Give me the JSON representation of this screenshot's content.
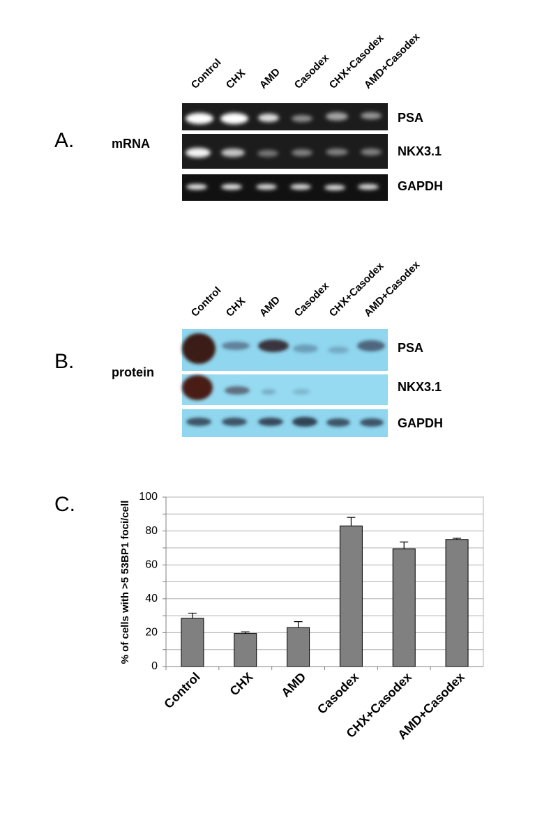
{
  "panel_a": {
    "label": "A.",
    "kind": "mRNA",
    "lanes": [
      "Control",
      "CHX",
      "AMD",
      "Casodex",
      "CHX+Casodex",
      "AMD+Casodex"
    ],
    "rows": [
      "PSA",
      "NKX3.1",
      "GAPDH"
    ]
  },
  "panel_b": {
    "label": "B.",
    "kind": "protein",
    "lanes": [
      "Control",
      "CHX",
      "AMD",
      "Casodex",
      "CHX+Casodex",
      "AMD+Casodex"
    ],
    "rows": [
      "PSA",
      "NKX3.1",
      "GAPDH"
    ]
  },
  "chart_data": {
    "type": "bar",
    "panel_label": "C.",
    "y_label": "% of cells with >5 53BP1 foci/cell",
    "categories": [
      "Control",
      "CHX",
      "AMD",
      "Casodex",
      "CHX+Casodex",
      "AMD+Casodex"
    ],
    "values": [
      28.5,
      19.5,
      23,
      83,
      69.5,
      75
    ],
    "errors": [
      3,
      1,
      3.5,
      5,
      4,
      0.7
    ],
    "color": "#808080",
    "ylim": [
      0,
      100
    ],
    "yticks": [
      0,
      20,
      40,
      60,
      80,
      100
    ],
    "minor_yticks": [
      10,
      30,
      50,
      70,
      90
    ],
    "grid": true
  }
}
